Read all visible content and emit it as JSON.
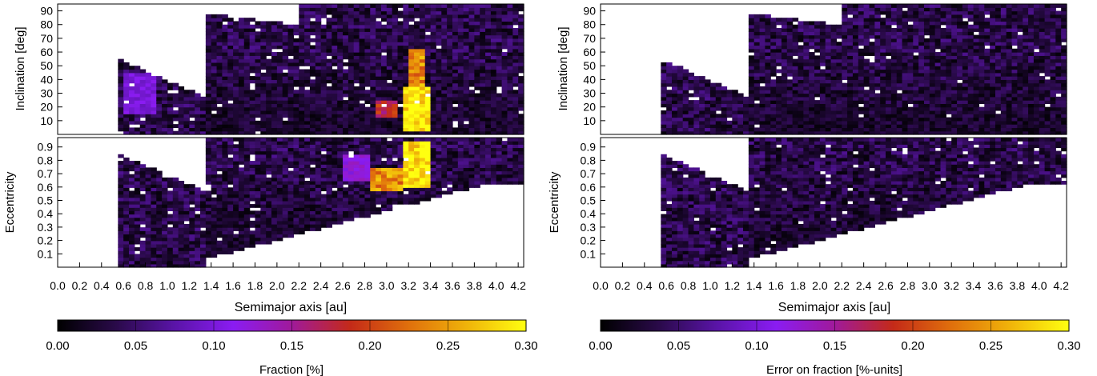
{
  "figure": {
    "shared_xlabel": "Semimajor axis [au]",
    "x_ticks": [
      "0.0",
      "0.2",
      "0.4",
      "0.6",
      "0.8",
      "1.0",
      "1.2",
      "1.4",
      "1.6",
      "1.8",
      "2.0",
      "2.2",
      "2.4",
      "2.6",
      "2.8",
      "3.0",
      "3.2",
      "3.4",
      "3.6",
      "3.8",
      "4.0",
      "4.2"
    ],
    "inc_ticks": [
      "10",
      "20",
      "30",
      "40",
      "50",
      "60",
      "70",
      "80",
      "90"
    ],
    "ecc_ticks": [
      "0.1",
      "0.2",
      "0.3",
      "0.4",
      "0.5",
      "0.6",
      "0.7",
      "0.8",
      "0.9"
    ],
    "cbar_ticks": [
      "0.00",
      "0.05",
      "0.10",
      "0.15",
      "0.20",
      "0.25",
      "0.30"
    ],
    "colormap": [
      "#000000",
      "#2a0a4a",
      "#5a14a8",
      "#8a1cf2",
      "#a01a9a",
      "#c42a18",
      "#e0700c",
      "#f0b40a",
      "#ffff10"
    ]
  },
  "chart_data": [
    {
      "type": "heatmap",
      "panel": "left-top",
      "xlabel": "Semimajor axis [au]",
      "ylabel": "Inclination [deg]",
      "xlim": [
        0.0,
        4.25
      ],
      "ylim": [
        0,
        95
      ],
      "value_range": [
        0.0,
        0.3
      ],
      "colorbar_label": "Fraction [%]",
      "hotspots": [
        {
          "a": [
            3.15,
            3.4
          ],
          "i": [
            3,
            35
          ],
          "value": 0.3
        },
        {
          "a": [
            3.2,
            3.35
          ],
          "i": [
            35,
            62
          ],
          "value": 0.24
        },
        {
          "a": [
            2.9,
            3.1
          ],
          "i": [
            12,
            25
          ],
          "value": 0.18
        },
        {
          "a": [
            0.6,
            0.9
          ],
          "i": [
            15,
            45
          ],
          "value": 0.1
        }
      ],
      "coverage_start_a": 0.55,
      "background_value": 0.04
    },
    {
      "type": "heatmap",
      "panel": "left-bottom",
      "xlabel": "Semimajor axis [au]",
      "ylabel": "Eccentricity",
      "xlim": [
        0.0,
        4.25
      ],
      "ylim": [
        0.0,
        0.97
      ],
      "value_range": [
        0.0,
        0.3
      ],
      "colorbar_label": "Fraction [%]",
      "hotspots": [
        {
          "a": [
            3.15,
            3.4
          ],
          "e": [
            0.6,
            0.95
          ],
          "value": 0.3
        },
        {
          "a": [
            2.85,
            3.15
          ],
          "e": [
            0.58,
            0.75
          ],
          "value": 0.24
        },
        {
          "a": [
            2.6,
            2.85
          ],
          "e": [
            0.65,
            0.85
          ],
          "value": 0.12
        }
      ],
      "coverage_start_a": 0.55,
      "background_value": 0.04
    },
    {
      "type": "heatmap",
      "panel": "right-top",
      "xlabel": "Semimajor axis [au]",
      "ylabel": "Inclination [deg]",
      "xlim": [
        0.0,
        4.25
      ],
      "ylim": [
        0,
        95
      ],
      "value_range": [
        0.0,
        0.3
      ],
      "colorbar_label": "Error on fraction [%-units]",
      "coverage_start_a": 0.55,
      "background_value": 0.04
    },
    {
      "type": "heatmap",
      "panel": "right-bottom",
      "xlabel": "Semimajor axis [au]",
      "ylabel": "Eccentricity",
      "xlim": [
        0.0,
        4.25
      ],
      "ylim": [
        0.0,
        0.97
      ],
      "value_range": [
        0.0,
        0.3
      ],
      "colorbar_label": "Error on fraction [%-units]",
      "coverage_start_a": 0.55,
      "background_value": 0.04
    }
  ]
}
